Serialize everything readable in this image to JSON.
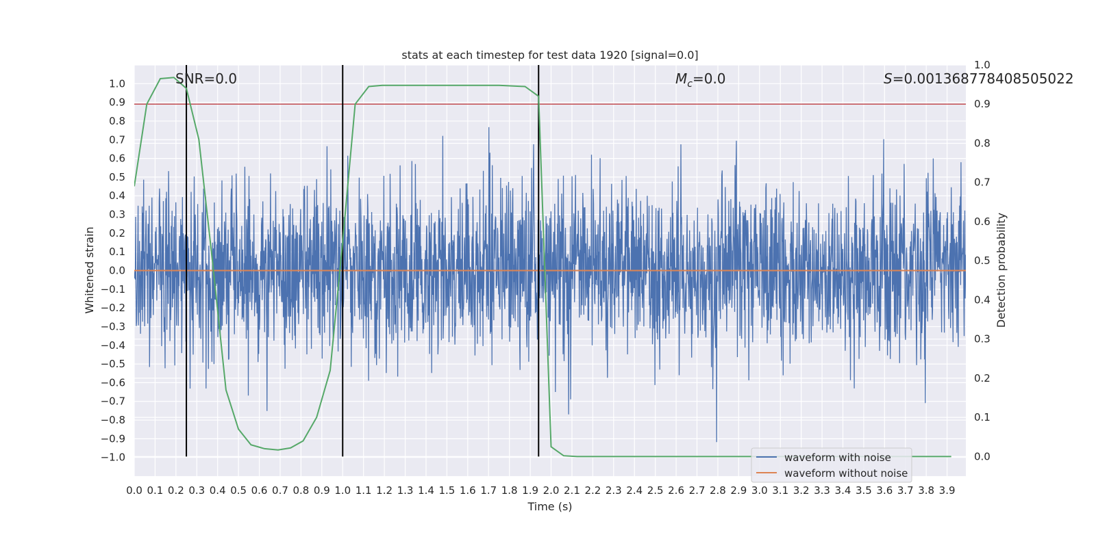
{
  "chart_data": {
    "type": "line",
    "title": "stats at each timestep for test data 1920 [signal=0.0]",
    "xlabel": "Time (s)",
    "ylabel": "Whitened strain",
    "ylabel_right": "Detection probability",
    "xlim": [
      0.0,
      3.99
    ],
    "ylim": [
      -1.1,
      1.1
    ],
    "ylim_right": [
      -0.05,
      1.0
    ],
    "x_ticks": [
      "0.0",
      "0.1",
      "0.2",
      "0.3",
      "0.4",
      "0.5",
      "0.6",
      "0.7",
      "0.8",
      "0.9",
      "1.0",
      "1.1",
      "1.2",
      "1.3",
      "1.4",
      "1.5",
      "1.6",
      "1.7",
      "1.8",
      "1.9",
      "2.0",
      "2.1",
      "2.2",
      "2.3",
      "2.4",
      "2.5",
      "2.6",
      "2.7",
      "2.8",
      "2.9",
      "3.0",
      "3.1",
      "3.2",
      "3.3",
      "3.4",
      "3.5",
      "3.6",
      "3.7",
      "3.8",
      "3.9"
    ],
    "y_ticks": [
      "1.0",
      "0.9",
      "0.8",
      "0.7",
      "0.6",
      "0.5",
      "0.4",
      "0.3",
      "0.2",
      "0.1",
      "0.0",
      "−0.1",
      "−0.2",
      "−0.3",
      "−0.4",
      "−0.5",
      "−0.6",
      "−0.7",
      "−0.8",
      "−0.9",
      "−1.0"
    ],
    "y_ticks_right": [
      "1.0",
      "0.9",
      "0.8",
      "0.7",
      "0.6",
      "0.5",
      "0.4",
      "0.3",
      "0.2",
      "0.1",
      "0.0"
    ],
    "legend": [
      "waveform with noise",
      "waveform without noise"
    ],
    "legend_position": "lower-right",
    "annotations": {
      "snr": "SNR=0.0",
      "mc_symbol": "M",
      "mc_sub": "c",
      "mc_value": "=0.0",
      "s_symbol": "S",
      "s_value": "=0.001368778408505022"
    },
    "colors": {
      "noise": "#4c72b0",
      "clean": "#dd8452",
      "probability": "#55a868",
      "threshold": "#c44e52",
      "vlines": "#000000",
      "axes_bg": "#eaeaf2",
      "grid": "#ffffff"
    },
    "series": [
      {
        "name": "waveform with noise",
        "axis": "left",
        "kind": "noise",
        "x_range": [
          0.0,
          3.99
        ],
        "amplitude_p95": 0.45,
        "amplitude_max": 1.0
      },
      {
        "name": "waveform without noise",
        "axis": "left",
        "x": [
          0.0,
          3.99
        ],
        "y": [
          0.0,
          0.0
        ]
      },
      {
        "name": "detection probability",
        "axis": "right",
        "x": [
          0.0,
          0.06,
          0.125,
          0.19,
          0.25,
          0.31,
          0.375,
          0.44,
          0.5,
          0.56,
          0.625,
          0.69,
          0.75,
          0.81,
          0.875,
          0.94,
          1.0,
          1.06,
          1.125,
          1.19,
          1.25,
          1.5,
          1.75,
          1.875,
          1.94,
          2.0,
          2.06,
          2.125,
          3.92
        ],
        "y": [
          0.69,
          0.9,
          0.965,
          0.968,
          0.94,
          0.81,
          0.5,
          0.17,
          0.07,
          0.03,
          0.02,
          0.017,
          0.022,
          0.04,
          0.1,
          0.22,
          0.55,
          0.9,
          0.945,
          0.948,
          0.948,
          0.948,
          0.948,
          0.945,
          0.92,
          0.025,
          0.002,
          0.0,
          0.0
        ]
      },
      {
        "name": "threshold",
        "axis": "right",
        "x": [
          0.0,
          3.99
        ],
        "y": [
          0.9,
          0.9
        ]
      }
    ],
    "vlines": [
      0.25,
      1.0,
      1.94
    ]
  }
}
